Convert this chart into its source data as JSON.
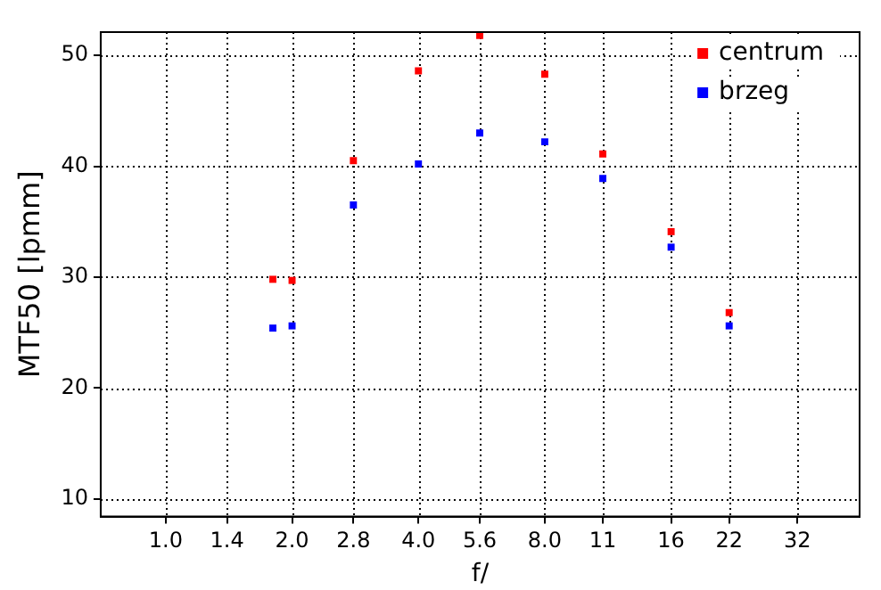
{
  "chart_data": {
    "type": "scatter",
    "xlabel": "f/",
    "ylabel": "MTF50 [lpmm]",
    "log": "x",
    "xlim": [
      0.71,
      45
    ],
    "ylim": [
      8.4,
      52.1
    ],
    "xticks": [
      {
        "value": 1,
        "label": "1.0"
      },
      1.4,
      {
        "value": 2,
        "label": "2.0"
      },
      2.8,
      {
        "value": 4,
        "label": "4.0"
      },
      5.6,
      {
        "value": 8,
        "label": "8.0"
      },
      11,
      16,
      22,
      32
    ],
    "yticks": [
      10,
      20,
      30,
      40,
      50
    ],
    "grid": true,
    "legend": "top right",
    "marker": "square",
    "series": [
      {
        "name": "centrum",
        "color": "#ff0000",
        "x": [
          1.8,
          2,
          2.8,
          4,
          5.6,
          8,
          11,
          16,
          22
        ],
        "values": [
          29.8,
          29.7,
          40.5,
          48.6,
          51.8,
          48.3,
          41.1,
          34.1,
          26.8
        ]
      },
      {
        "name": "brzeg",
        "color": "#0000ff",
        "x": [
          1.8,
          2,
          2.8,
          4,
          5.6,
          8,
          11,
          16,
          22
        ],
        "values": [
          25.4,
          25.6,
          36.5,
          40.2,
          43.0,
          42.2,
          38.9,
          32.7,
          25.6
        ]
      }
    ]
  }
}
